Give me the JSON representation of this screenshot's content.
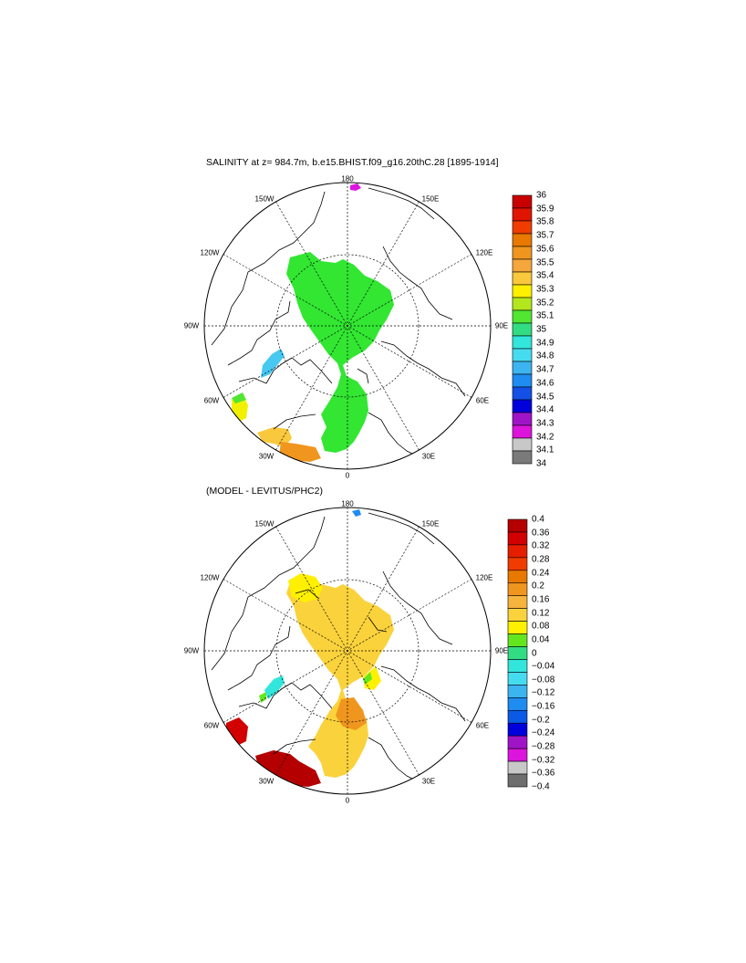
{
  "panel1": {
    "title": "SALINITY at z= 984.7m, b.e15.BHIST.f09_g16.20thC.28 [1895-1914]",
    "lon_labels": {
      "l180": "180",
      "l150W": "150W",
      "l150E": "150E",
      "l120W": "120W",
      "l120E": "120E",
      "l90W": "90W",
      "l90E": "90E",
      "l60W": "60W",
      "l60E": "60E",
      "l30W": "30W",
      "l30E": "30E",
      "l0": "0"
    },
    "colorbar": {
      "labels": [
        "36",
        "35.9",
        "35.8",
        "35.7",
        "35.6",
        "35.5",
        "35.4",
        "35.3",
        "35.2",
        "35.1",
        "35",
        "34.9",
        "34.8",
        "34.7",
        "34.6",
        "34.5",
        "34.4",
        "34.3",
        "34.2",
        "34.1",
        "34"
      ],
      "colors": [
        "#c80000",
        "#e11400",
        "#f03c00",
        "#e87800",
        "#f0961e",
        "#f5a63c",
        "#fac83c",
        "#fff000",
        "#b4e61e",
        "#50e632",
        "#32dc82",
        "#32e6dc",
        "#46dcf0",
        "#3cb4f0",
        "#1e8cf0",
        "#1450e6",
        "#0000dc",
        "#a014c8",
        "#dc14dc",
        "#c8c8c8",
        "#7a7a7a"
      ]
    }
  },
  "panel2": {
    "title": "(MODEL - LEVITUS/PHC2)",
    "lon_labels": {
      "l180": "180",
      "l150W": "150W",
      "l150E": "150E",
      "l120W": "120W",
      "l120E": "120E",
      "l90W": "90W",
      "l90E": "90E",
      "l60W": "60W",
      "l60E": "60E",
      "l30W": "30W",
      "l30E": "30E",
      "l0": "0"
    },
    "colorbar": {
      "labels": [
        "0.4",
        "0.36",
        "0.32",
        "0.28",
        "0.24",
        "0.2",
        "0.16",
        "0.12",
        "0.08",
        "0.04",
        "0",
        "−0.04",
        "−0.08",
        "−0.12",
        "−0.16",
        "−0.2",
        "−0.24",
        "−0.28",
        "−0.32",
        "−0.36",
        "−0.4"
      ],
      "colors": [
        "#b40000",
        "#d20000",
        "#e61e00",
        "#f03c00",
        "#e87800",
        "#f0961e",
        "#f5b43c",
        "#fad23c",
        "#fff000",
        "#64e61e",
        "#32dc82",
        "#32e6dc",
        "#46dcf0",
        "#3cb4f0",
        "#1e8cf0",
        "#0a5ae6",
        "#0000dc",
        "#a014c8",
        "#dc14dc",
        "#c8c8c8",
        "#6e6e6e"
      ]
    }
  }
}
